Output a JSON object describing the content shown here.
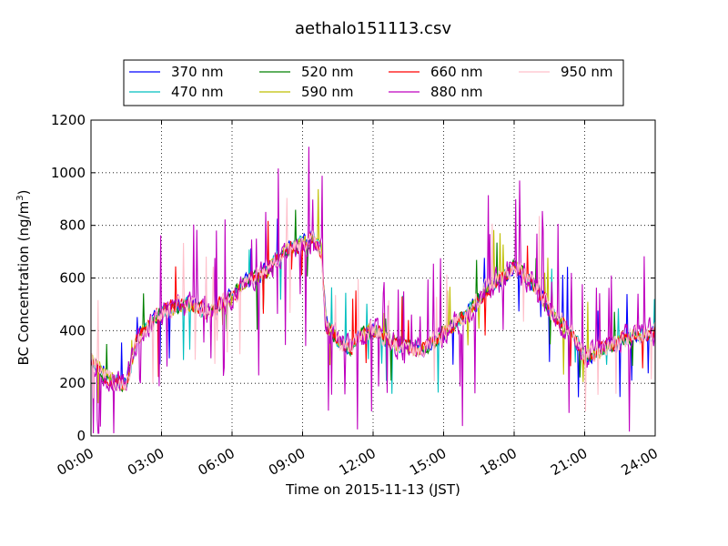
{
  "chart_data": {
    "type": "line",
    "title": "aethalo151113.csv",
    "xlabel": "Time on 2015-11-13 (JST)",
    "ylabel": "BC Concentration (ng/m",
    "ylabel_sup": "3",
    "ylabel_close": ")",
    "xlim_hours": [
      0,
      24
    ],
    "ylim": [
      0,
      1200
    ],
    "yticks": [
      0,
      200,
      400,
      600,
      800,
      1000,
      1200
    ],
    "xticks": [
      {
        "h": 0,
        "label": "00:00"
      },
      {
        "h": 3,
        "label": "03:00"
      },
      {
        "h": 6,
        "label": "06:00"
      },
      {
        "h": 9,
        "label": "09:00"
      },
      {
        "h": 12,
        "label": "12:00"
      },
      {
        "h": 15,
        "label": "15:00"
      },
      {
        "h": 18,
        "label": "18:00"
      },
      {
        "h": 21,
        "label": "21:00"
      },
      {
        "h": 24,
        "label": "24:00"
      }
    ],
    "grid": true,
    "legend_placement": "top-center, 4 columns, above plot",
    "profile": {
      "hours": [
        0,
        0.5,
        1,
        1.5,
        2,
        3,
        4,
        5,
        6,
        6.5,
        7,
        7.5,
        8,
        8.5,
        9,
        9.5,
        9.8,
        10,
        10.5,
        11,
        11.5,
        12,
        12.5,
        13,
        14,
        15,
        15.5,
        16,
        16.5,
        17,
        17.5,
        18,
        18.5,
        19,
        19.5,
        20,
        20.5,
        21,
        22,
        23,
        24
      ],
      "values": [
        300,
        240,
        210,
        200,
        380,
        470,
        500,
        470,
        530,
        580,
        600,
        630,
        680,
        720,
        730,
        750,
        700,
        420,
        360,
        330,
        380,
        400,
        370,
        350,
        320,
        390,
        430,
        460,
        520,
        570,
        600,
        650,
        600,
        560,
        480,
        430,
        380,
        300,
        340,
        380,
        390
      ]
    },
    "series": [
      {
        "name": "370 nm",
        "color": "#0000ff",
        "noise": 45,
        "spike": 0.03,
        "seed": 11
      },
      {
        "name": "470 nm",
        "color": "#00bfbf",
        "noise": 40,
        "spike": 0.02,
        "seed": 23
      },
      {
        "name": "520 nm",
        "color": "#008000",
        "noise": 42,
        "spike": 0.02,
        "seed": 37
      },
      {
        "name": "590 nm",
        "color": "#bfbf00",
        "noise": 40,
        "spike": 0.02,
        "seed": 41
      },
      {
        "name": "660 nm",
        "color": "#ff0000",
        "noise": 45,
        "spike": 0.03,
        "seed": 53
      },
      {
        "name": "880 nm",
        "color": "#bf00bf",
        "noise": 75,
        "spike": 0.08,
        "seed": 67
      },
      {
        "name": "950 nm",
        "color": "#ffc0cb",
        "noise": 55,
        "spike": 0.04,
        "seed": 79
      }
    ]
  }
}
